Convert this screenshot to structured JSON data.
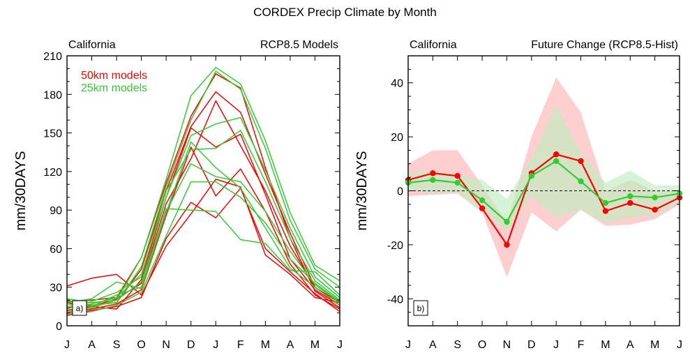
{
  "title": "CORDEX Precip Climate by Month",
  "colors": {
    "red": "#ff0000",
    "green": "#33cc33",
    "red_band": "#ffb3b3",
    "green_band": "#bfeebf"
  },
  "chart_data": [
    {
      "type": "line",
      "panel_label": "a)",
      "left_title": "California",
      "right_title": "RCP8.5 Models",
      "ylabel": "mm/30DAYS",
      "ylim": [
        0,
        210
      ],
      "yticks": [
        0,
        30,
        60,
        90,
        120,
        150,
        180,
        210
      ],
      "categories": [
        "J",
        "A",
        "S",
        "O",
        "N",
        "D",
        "J",
        "F",
        "M",
        "A",
        "M",
        "J"
      ],
      "legend": [
        {
          "label": "50km models",
          "color": "#ff0000"
        },
        {
          "label": "25km models",
          "color": "#33cc33"
        }
      ],
      "series": [
        {
          "group": "50km",
          "color": "#ff0000",
          "values": [
            31,
            37,
            40,
            24,
            62,
            87,
            114,
            108,
            55,
            40,
            22,
            18
          ]
        },
        {
          "group": "50km",
          "color": "#ff0000",
          "values": [
            19,
            20,
            22,
            53,
            111,
            163,
            196,
            185,
            123,
            68,
            27,
            14
          ]
        },
        {
          "group": "50km",
          "color": "#ff0000",
          "values": [
            14,
            16,
            18,
            44,
            105,
            155,
            182,
            166,
            118,
            72,
            30,
            16
          ]
        },
        {
          "group": "50km",
          "color": "#ff0000",
          "values": [
            12,
            15,
            13,
            36,
            100,
            154,
            139,
            149,
            102,
            52,
            28,
            16
          ]
        },
        {
          "group": "50km",
          "color": "#ff0000",
          "values": [
            10,
            13,
            17,
            28,
            86,
            139,
            101,
            122,
            89,
            48,
            24,
            13
          ]
        },
        {
          "group": "50km",
          "color": "#ff0000",
          "values": [
            8,
            12,
            15,
            22,
            68,
            96,
            84,
            107,
            60,
            42,
            25,
            11
          ]
        },
        {
          "group": "50km",
          "color": "#ff0000",
          "values": [
            18,
            15,
            21,
            33,
            95,
            130,
            175,
            140,
            105,
            62,
            30,
            18
          ]
        },
        {
          "group": "25km",
          "color": "#33cc33",
          "values": [
            21,
            18,
            20,
            53,
            114,
            179,
            201,
            188,
            144,
            88,
            47,
            35
          ]
        },
        {
          "group": "25km",
          "color": "#33cc33",
          "values": [
            20,
            16,
            18,
            46,
            108,
            160,
            198,
            184,
            138,
            82,
            44,
            30
          ]
        },
        {
          "group": "25km",
          "color": "#33cc33",
          "values": [
            15,
            17,
            22,
            40,
            100,
            148,
            157,
            162,
            121,
            76,
            38,
            22
          ]
        },
        {
          "group": "25km",
          "color": "#33cc33",
          "values": [
            13,
            19,
            26,
            38,
            105,
            137,
            138,
            152,
            112,
            68,
            35,
            20
          ]
        },
        {
          "group": "25km",
          "color": "#33cc33",
          "values": [
            18,
            21,
            34,
            29,
            88,
            143,
            123,
            107,
            76,
            45,
            30,
            16
          ]
        },
        {
          "group": "25km",
          "color": "#33cc33",
          "values": [
            11,
            14,
            20,
            34,
            89,
            126,
            116,
            112,
            89,
            58,
            32,
            18
          ]
        },
        {
          "group": "25km",
          "color": "#33cc33",
          "values": [
            17,
            15,
            24,
            30,
            91,
            90,
            89,
            67,
            64,
            43,
            42,
            24
          ]
        },
        {
          "group": "25km",
          "color": "#33cc33",
          "values": [
            9,
            11,
            16,
            26,
            70,
            112,
            112,
            100,
            80,
            52,
            33,
            19
          ]
        }
      ]
    },
    {
      "type": "line",
      "panel_label": "b)",
      "left_title": "California",
      "right_title": "Future Change (RCP8.5-Hist)",
      "ylabel": "mm/30DAYS",
      "ylim": [
        -50,
        50
      ],
      "yticks": [
        -40,
        -20,
        0,
        20,
        40
      ],
      "categories": [
        "J",
        "A",
        "S",
        "O",
        "N",
        "D",
        "J",
        "F",
        "M",
        "A",
        "M",
        "J"
      ],
      "zero_line": "dashed",
      "series": [
        {
          "name": "50km",
          "color": "#ff0000",
          "values": [
            4,
            6.5,
            5.5,
            -6.5,
            -20,
            6.5,
            13.5,
            11,
            -7.5,
            -4.5,
            -7,
            -2.5
          ]
        },
        {
          "name": "25km",
          "color": "#33cc33",
          "values": [
            3,
            4,
            3,
            -3.5,
            -11.5,
            5.5,
            11,
            3.5,
            -4.5,
            -2,
            -2.5,
            -1
          ]
        }
      ],
      "bands": [
        {
          "group": "50km",
          "color": "#ffb3b3",
          "lower": [
            -2,
            -1.5,
            -1,
            -8,
            -32,
            -8,
            -15,
            -7,
            -13,
            -12.5,
            -10.5,
            -5
          ],
          "upper": [
            10,
            15,
            15,
            2,
            -12,
            20,
            42,
            29,
            0,
            4,
            0,
            0
          ]
        },
        {
          "group": "25km",
          "color": "#bfeebf",
          "lower": [
            0,
            -1,
            -0.5,
            -8,
            -15,
            -2,
            -10,
            -7,
            -12,
            -10,
            -9,
            -4
          ],
          "upper": [
            6.5,
            7.5,
            6,
            4,
            -3,
            12,
            32,
            14,
            3,
            7.5,
            2,
            2
          ]
        }
      ]
    }
  ]
}
